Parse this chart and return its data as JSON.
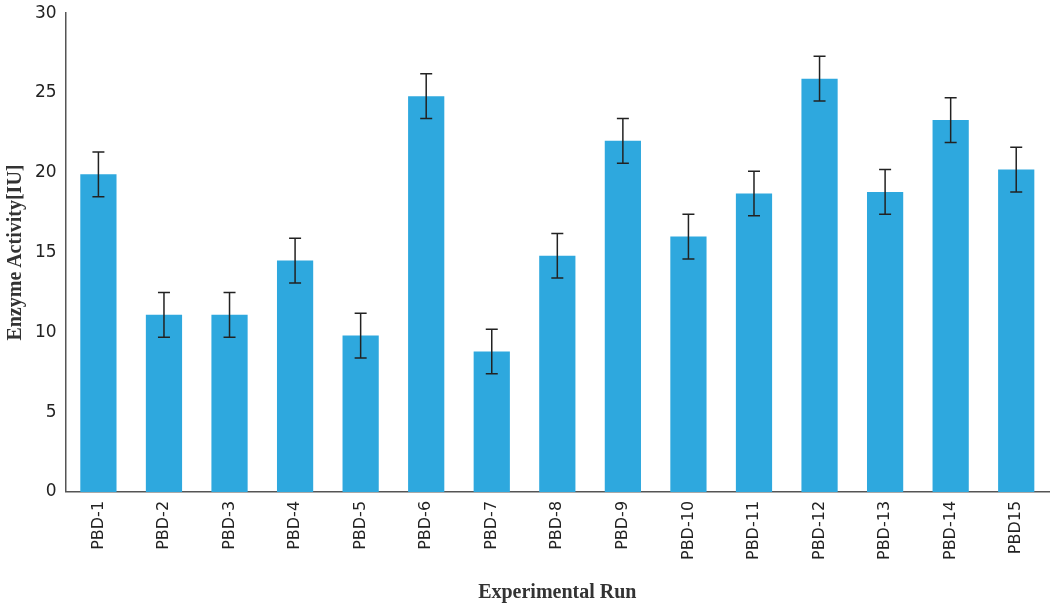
{
  "chart_data": {
    "type": "bar",
    "xlabel": "Experimental Run",
    "ylabel": "Enzyme Activity[IU]",
    "categories": [
      "PBD-1",
      "PBD-2",
      "PBD-3",
      "PBD-4",
      "PBD-5",
      "PBD-6",
      "PBD-7",
      "PBD-8",
      "PBD-9",
      "PBD-10",
      "PBD-11",
      "PBD-12",
      "PBD-13",
      "PBD-14",
      "PBD15"
    ],
    "values": [
      19.9,
      11.1,
      11.1,
      14.5,
      9.8,
      24.8,
      8.8,
      14.8,
      22.0,
      16.0,
      18.7,
      25.9,
      18.8,
      23.3,
      20.2
    ],
    "errors": [
      1.4,
      1.4,
      1.4,
      1.4,
      1.4,
      1.4,
      1.4,
      1.4,
      1.4,
      1.4,
      1.4,
      1.4,
      1.4,
      1.4,
      1.4
    ],
    "color": "#2ea8de",
    "ylim": [
      0,
      30
    ],
    "yticks": [
      0,
      5,
      10,
      15,
      20,
      25,
      30
    ],
    "grid": false,
    "legend": false
  }
}
